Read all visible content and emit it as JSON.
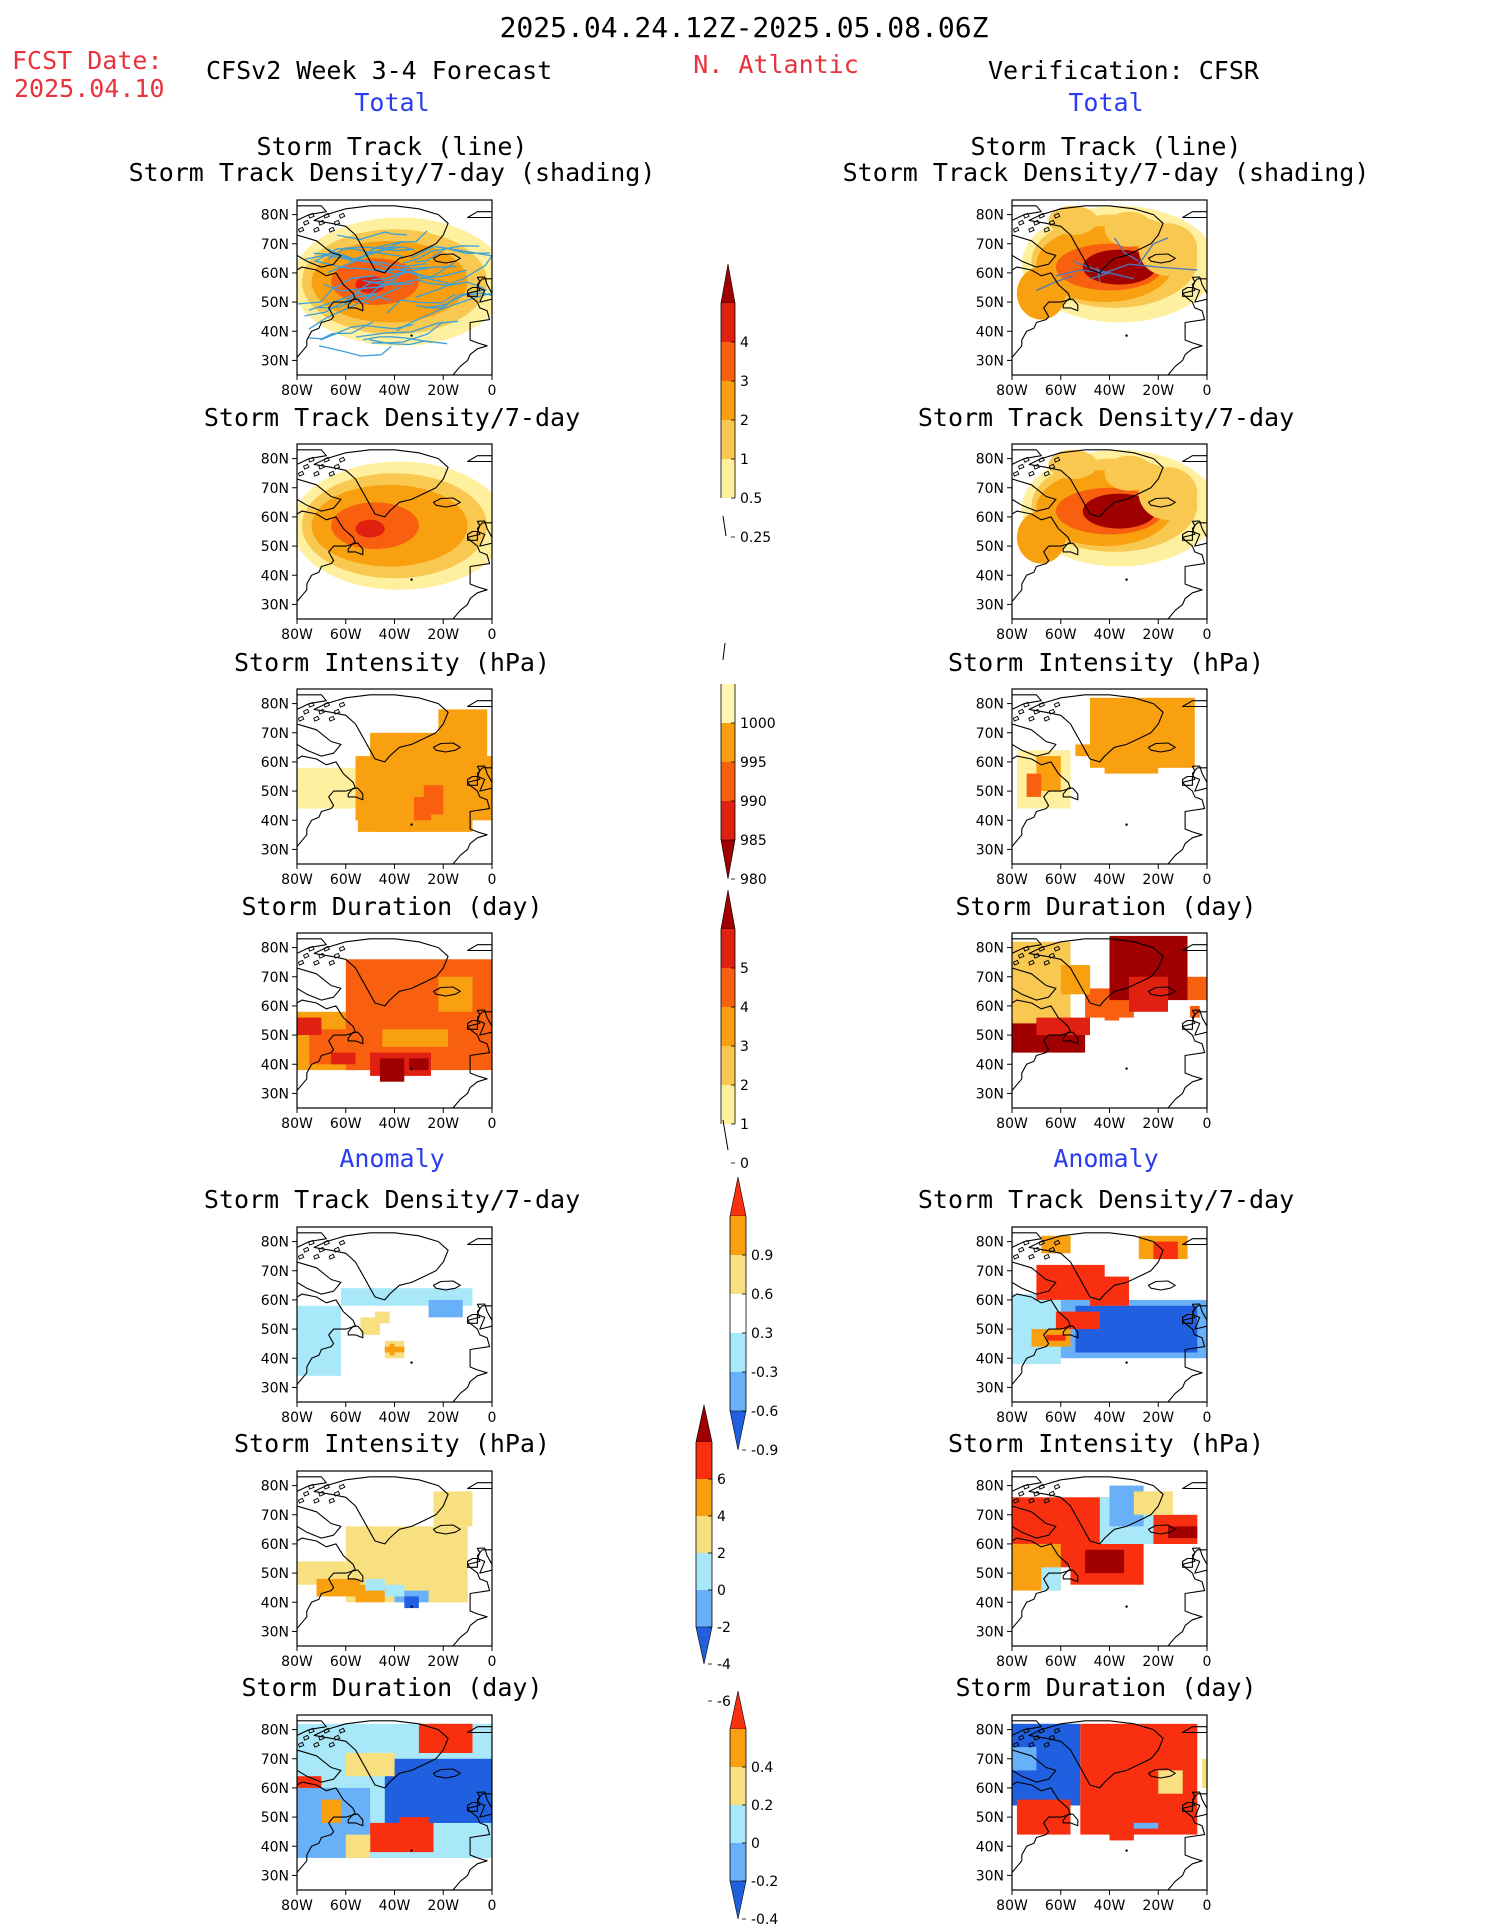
{
  "header": {
    "period": "2025.04.24.12Z-2025.05.08.06Z",
    "fcst_label": "FCST Date:",
    "fcst_date": "2025.04.10",
    "model": "CFSv2 Week 3-4 Forecast",
    "region": "N. Atlantic",
    "verification": "Verification: CFSR",
    "left_section": "Total",
    "right_section": "Total"
  },
  "sections": {
    "anomaly_left": "Anomaly",
    "anomaly_right": "Anomaly"
  },
  "panel_titles": {
    "track_line": "Storm Track (line)",
    "track_shading": "Storm Track Density/7-day (shading)",
    "density": "Storm Track Density/7-day",
    "intensity": "Storm Intensity (hPa)",
    "duration": "Storm Duration (day)"
  },
  "axes": {
    "lat_ticks": [
      "80N",
      "70N",
      "60N",
      "50N",
      "40N",
      "30N"
    ],
    "lon_ticks": [
      "80W",
      "60W",
      "40W",
      "20W",
      "0"
    ]
  },
  "colorbars": {
    "density_total": {
      "labels": [
        "4",
        "3",
        "2",
        "1",
        "0.5",
        "0.25"
      ],
      "colors": [
        "#a00000",
        "#e02010",
        "#f86010",
        "#f8a010",
        "#f8c850",
        "#fff0a0"
      ]
    },
    "intensity_total": {
      "labels": [
        "1000",
        "995",
        "990",
        "985",
        "980"
      ],
      "colors": [
        "#fff4b0",
        "#f8a010",
        "#f86010",
        "#e02010",
        "#a00000"
      ]
    },
    "duration_total": {
      "labels": [
        "5",
        "4",
        "3",
        "2",
        "1",
        "0"
      ],
      "colors": [
        "#a00000",
        "#e02010",
        "#f86010",
        "#f8a010",
        "#f8c850",
        "#fff0a0"
      ]
    },
    "density_anom": {
      "labels": [
        "0.9",
        "0.6",
        "0.3",
        "-0.3",
        "-0.6",
        "-0.9"
      ],
      "colors": [
        "#f83010",
        "#f8a010",
        "#f8e080",
        "#ffffff",
        "#a8e8f8",
        "#68b0f8",
        "#2060e0"
      ]
    },
    "intensity_anom": {
      "labels": [
        "6",
        "4",
        "2",
        "0",
        "-2",
        "-4",
        "-6"
      ],
      "colors": [
        "#a00000",
        "#f83010",
        "#f8a010",
        "#f8e080",
        "#a8e8f8",
        "#68b0f8",
        "#2060e0"
      ]
    },
    "duration_anom": {
      "labels": [
        "0.4",
        "0.2",
        "0",
        "-0.2",
        "-0.4"
      ],
      "colors": [
        "#f83010",
        "#f8a010",
        "#f8e080",
        "#a8e8f8",
        "#68b0f8",
        "#2060e0"
      ]
    }
  },
  "map_colors": {
    "t1": "#a00000",
    "t2": "#e02010",
    "t3": "#f86010",
    "t4": "#f8a010",
    "t5": "#f8c850",
    "t6": "#fff0a0",
    "track_line": "#3aa0d8",
    "a_red": "#f83010",
    "a_org": "#f8a010",
    "a_yel": "#f8e080",
    "a_lb": "#a8e8f8",
    "a_mb": "#68b0f8",
    "a_db": "#2060e0"
  }
}
